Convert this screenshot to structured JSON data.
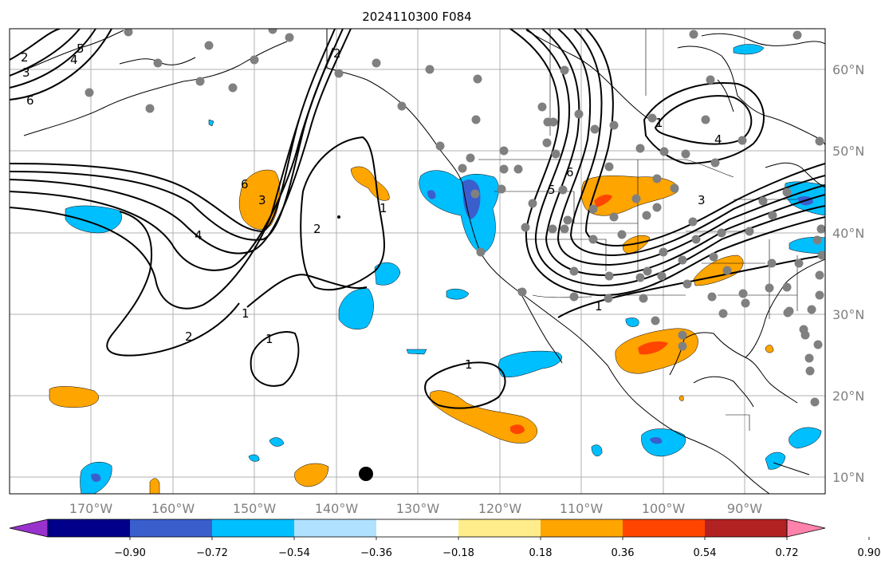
{
  "title": "2024110300 F084",
  "lon_labels": [
    "170°W",
    "160°W",
    "150°W",
    "140°W",
    "130°W",
    "120°W",
    "110°W",
    "100°W",
    "90°W"
  ],
  "lat_labels": [
    "60°N",
    "50°N",
    "40°N",
    "30°N",
    "20°N",
    "10°N"
  ],
  "contour_labels": [
    "2",
    "3",
    "4",
    "5",
    "6",
    "6",
    "3",
    "4",
    "2",
    "1",
    "1",
    "2",
    "1",
    "6",
    "5",
    "3",
    "4",
    "1",
    "1",
    "1",
    "2"
  ],
  "colorbar": {
    "tick_labels": [
      "−0.90",
      "−0.72",
      "−0.54",
      "−0.36",
      "−0.18",
      "0.18",
      "0.36",
      "0.54",
      "0.72",
      "0.90"
    ],
    "colors": [
      "#9932CC",
      "#00008B",
      "#3A5FCD",
      "#00BFFF",
      "#B0E2FF",
      "#FFFFFF",
      "#FFEC8B",
      "#FFA500",
      "#FF4500",
      "#B22222",
      "#FF82AB"
    ]
  },
  "marker_color": "#808080"
}
